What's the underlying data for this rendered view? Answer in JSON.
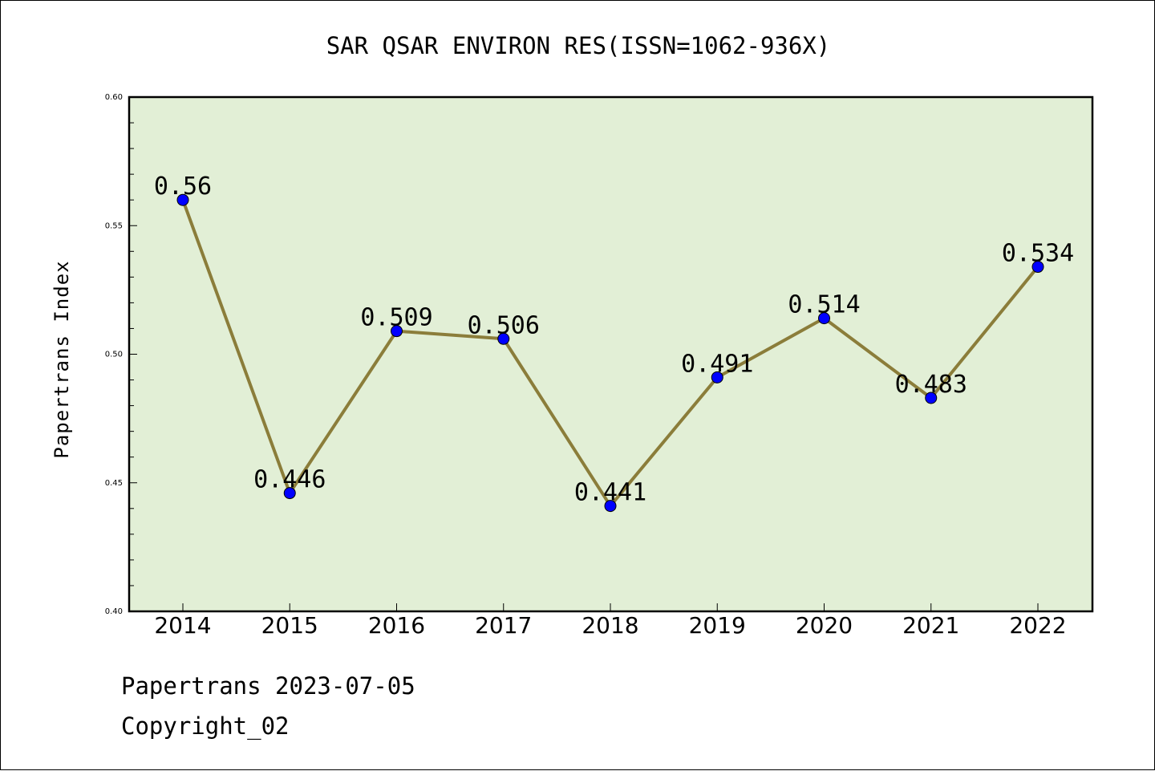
{
  "chart_data": {
    "type": "line",
    "title": "SAR QSAR ENVIRON RES(ISSN=1062-936X)",
    "ylabel": "Papertrans Index",
    "xlabel": "",
    "categories": [
      "2014",
      "2015",
      "2016",
      "2017",
      "2018",
      "2019",
      "2020",
      "2021",
      "2022"
    ],
    "series": [
      {
        "values": [
          0.56,
          0.446,
          0.509,
          0.506,
          0.441,
          0.491,
          0.514,
          0.483,
          0.534
        ],
        "labels": [
          "0.56",
          "0.446",
          "0.509",
          "0.506",
          "0.441",
          "0.491",
          "0.514",
          "0.483",
          "0.534"
        ]
      }
    ],
    "yticks": [
      "0.40",
      "0.45",
      "0.50",
      "0.55",
      "0.60"
    ],
    "ylim": [
      0.4,
      0.6
    ],
    "grid": false,
    "colors": {
      "plot_background": "#e2efd6",
      "line": "#8b7d3a",
      "marker": "#0000ff"
    }
  },
  "footer": {
    "line1": "Papertrans 2023-07-05",
    "line2": "Copyright_02"
  }
}
